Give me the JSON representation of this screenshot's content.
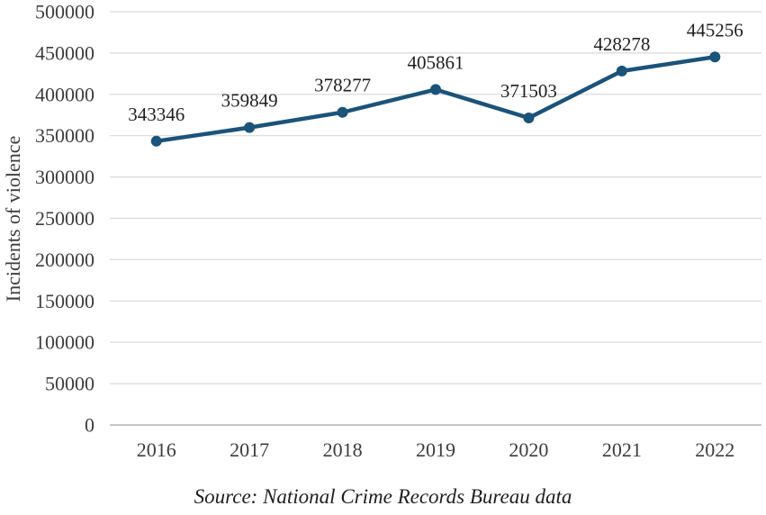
{
  "chart_data": {
    "type": "line",
    "categories": [
      "2016",
      "2017",
      "2018",
      "2019",
      "2020",
      "2021",
      "2022"
    ],
    "series": [
      {
        "name": "Incidents of violence",
        "values": [
          343346,
          359849,
          378277,
          405861,
          371503,
          428278,
          445256
        ]
      }
    ],
    "data_labels": [
      "343346",
      "359849",
      "378277",
      "405861",
      "371503",
      "428278",
      "445256"
    ],
    "title": "",
    "xlabel": "",
    "ylabel": "Incidents of violence",
    "ylim": [
      0,
      500000
    ],
    "yticks": [
      0,
      50000,
      100000,
      150000,
      200000,
      250000,
      300000,
      350000,
      400000,
      450000,
      500000
    ],
    "grid": true,
    "legend": "none",
    "line_color": "#1b5379",
    "marker_color": "#1b5379",
    "gridline_color": "#d9d9d9",
    "axis_line_color": "#b3b3b3",
    "tick_label_color": "#3d3d3d",
    "data_label_color": "#1f1f1f"
  },
  "caption": {
    "source": "Source: National Crime Records Bureau data"
  }
}
